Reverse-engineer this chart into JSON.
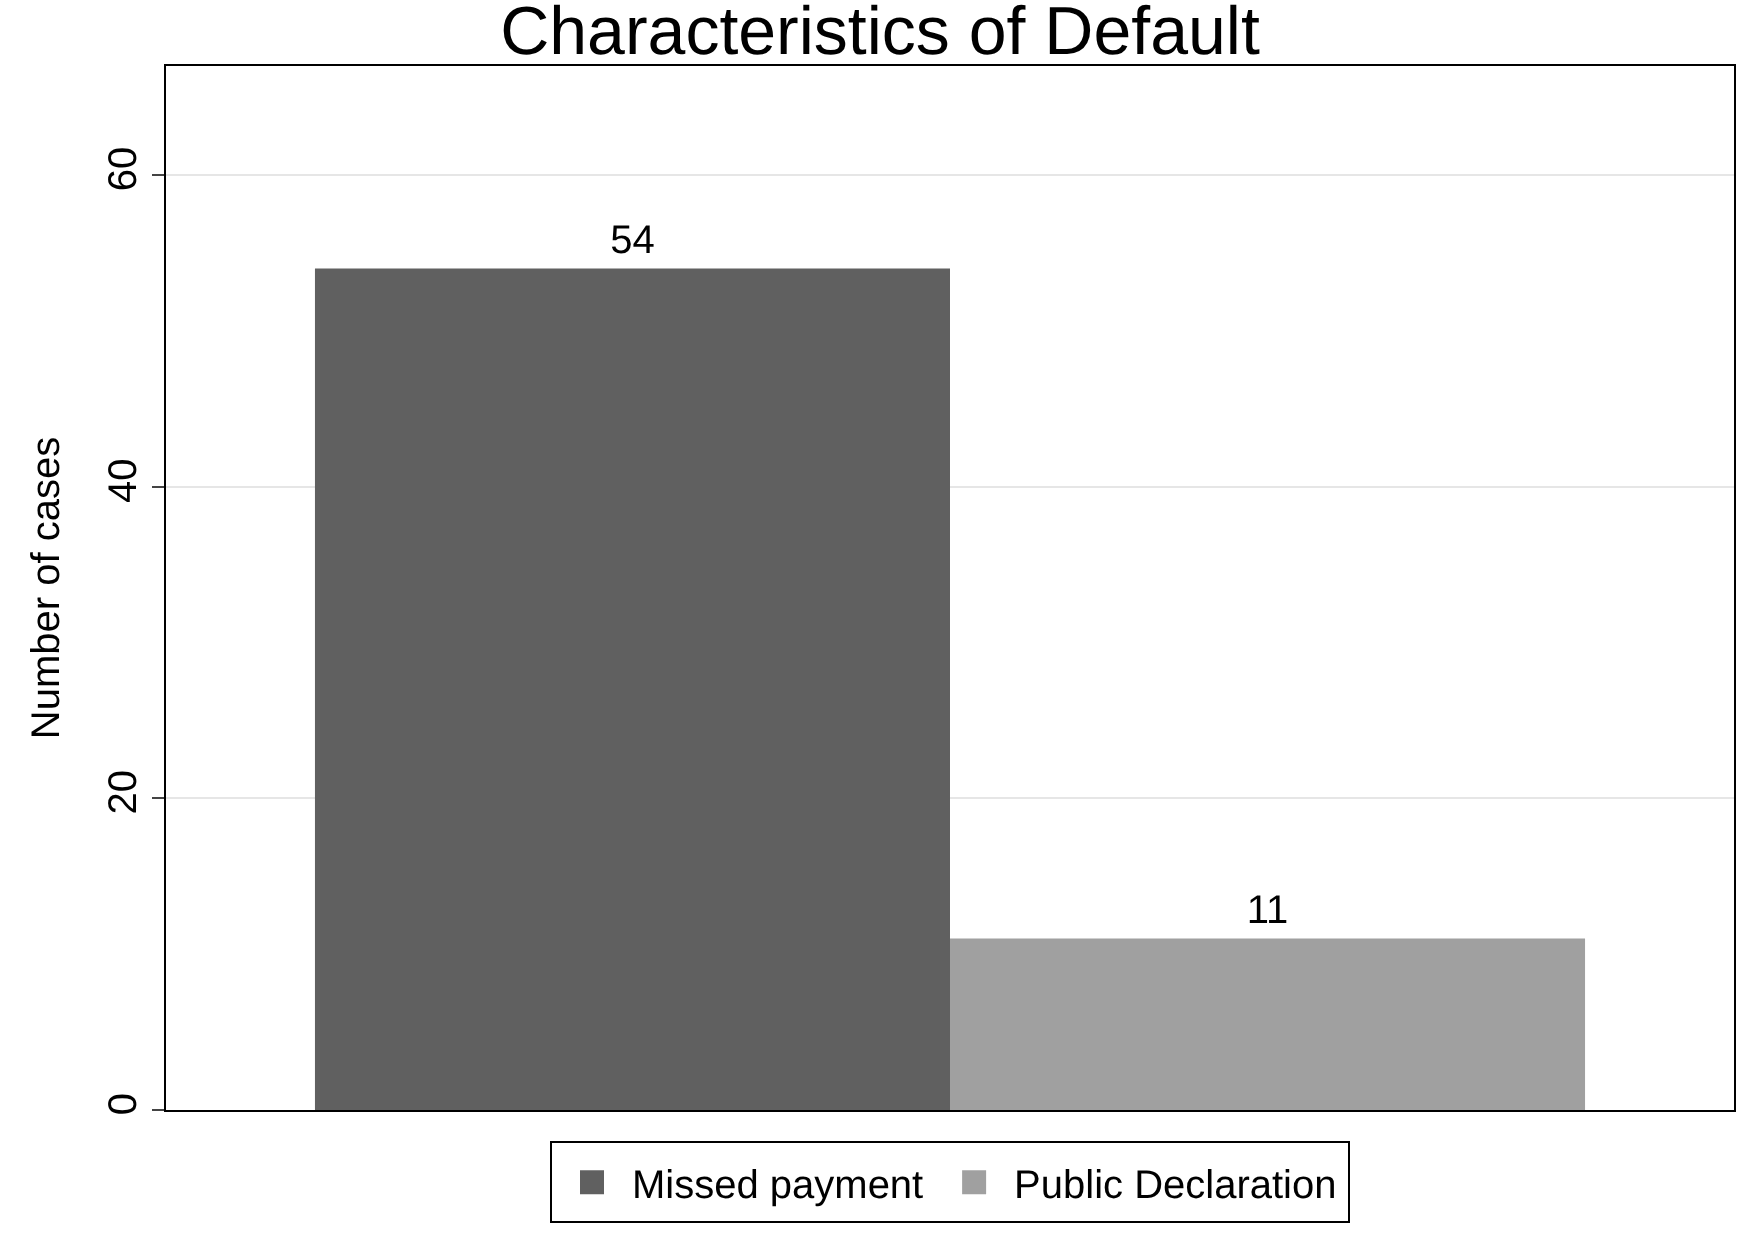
{
  "chart_data": {
    "type": "bar",
    "title": "Characteristics of Default",
    "ylabel": "Number of cases",
    "categories": [
      null
    ],
    "series": [
      {
        "name": "Missed payment",
        "color": "#606060",
        "values": [
          54
        ]
      },
      {
        "name": "Public Declaration",
        "color": "#a0a0a0",
        "values": [
          11
        ]
      }
    ],
    "ylim": [
      0,
      67
    ],
    "yticks": [
      0,
      20,
      40,
      60
    ],
    "grid": "y",
    "legend": "bottom",
    "data_labels": true,
    "tick_labels": "y"
  }
}
